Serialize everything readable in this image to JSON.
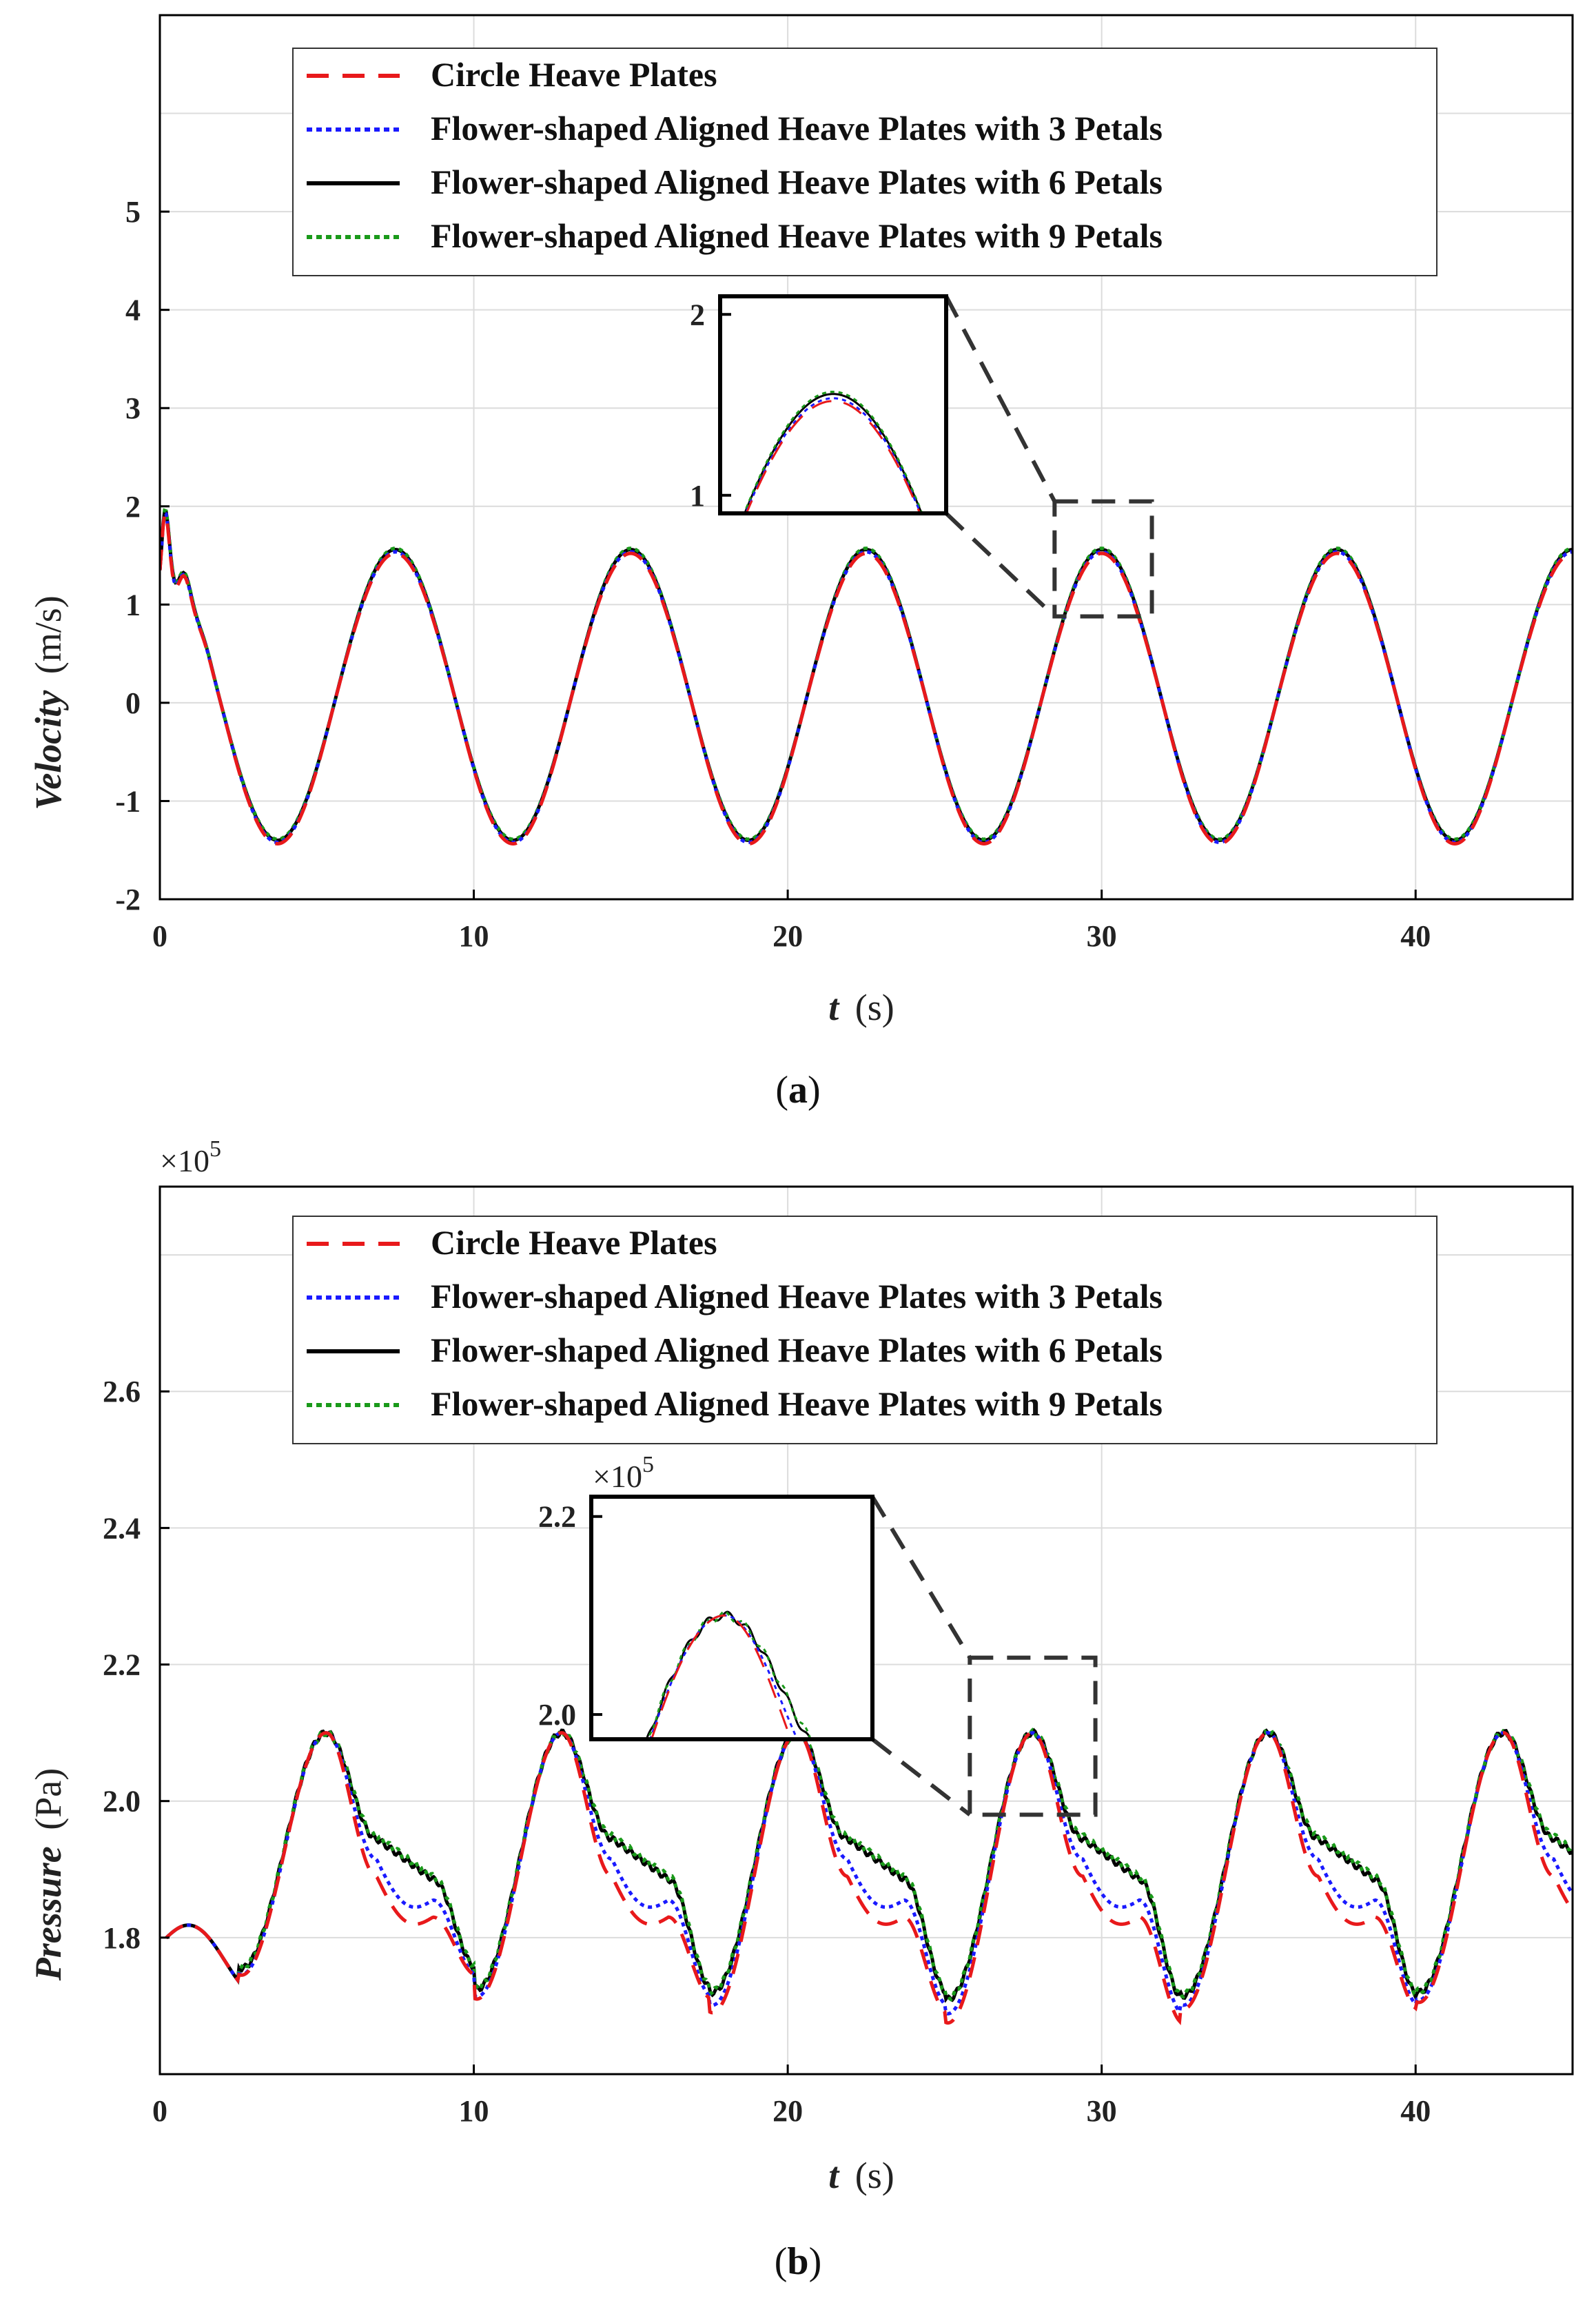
{
  "chart_data": [
    {
      "type": "line",
      "panel_label": "a",
      "ylabel_italic": "Velocity",
      "ylabel_unit": "(m/s)",
      "xlabel_italic": "t",
      "xlabel_unit": "(s)",
      "xlim": [
        0,
        45
      ],
      "ylim": [
        -2,
        7
      ],
      "xticks": [
        0,
        10,
        20,
        30,
        40
      ],
      "yticks": [
        -2,
        -1,
        0,
        1,
        2,
        3,
        4,
        5
      ],
      "grid": true,
      "legend_position": "top-center",
      "signal": {
        "period": 7.5,
        "mean": 0.08,
        "amplitude": 1.48,
        "peak_times": [
          7.5,
          15.0,
          22.5,
          30.0,
          37.5,
          45.0
        ],
        "trough_times": [
          3.75,
          11.25,
          18.75,
          26.25,
          33.75,
          41.25
        ],
        "peak_value": 1.56,
        "trough_value": -1.4,
        "start_value": 1.3
      },
      "series": [
        {
          "name": "Circle Heave Plates",
          "color": "#e8191b",
          "dash": "dashed",
          "peak_scale": 0.975
        },
        {
          "name": "Flower-shaped Aligned Heave Plates with 3 Petals",
          "color": "#1a1aff",
          "dash": "dotted",
          "peak_scale": 0.985
        },
        {
          "name": "Flower-shaped Aligned Heave Plates with 6 Petals",
          "color": "#000000",
          "dash": "solid",
          "peak_scale": 1.0
        },
        {
          "name": "Flower-shaped Aligned Heave Plates with 9 Petals",
          "color": "#1a9a1a",
          "dash": "dotted",
          "peak_scale": 1.008
        }
      ],
      "inset": {
        "x_range": [
          28.5,
          31.5
        ],
        "y_range": [
          0.9,
          2.1
        ],
        "yticks": [
          1,
          2
        ],
        "zoom_box_x": [
          28.5,
          31.6
        ],
        "zoom_box_y": [
          0.88,
          2.05
        ]
      }
    },
    {
      "type": "line",
      "panel_label": "b",
      "ylabel_italic": "Pressure",
      "ylabel_unit": "(Pa)",
      "xlabel_italic": "t",
      "xlabel_unit": "(s)",
      "exponent_label": "×10",
      "exponent_power": "5",
      "xlim": [
        0,
        45
      ],
      "ylim": [
        1.6,
        2.9
      ],
      "xticks": [
        0,
        10,
        20,
        30,
        40
      ],
      "yticks": [
        1.8,
        2.0,
        2.2,
        2.4,
        2.6
      ],
      "ytick_labels": [
        "1.8",
        "2.0",
        "2.2",
        "2.4",
        "2.6"
      ],
      "grid": true,
      "legend_position": "top-center",
      "signal": {
        "period": 7.5,
        "peak_times": [
          5.3,
          12.8,
          20.3,
          27.8,
          35.3,
          42.8
        ],
        "peak_value": 2.1,
        "trough_times": [
          2.5,
          10.1,
          17.6,
          25.1,
          32.6,
          40.2
        ],
        "trough_values_circle": [
          1.745,
          1.71,
          1.69,
          1.675,
          1.695,
          1.705
        ],
        "trough_values_6petal": [
          1.755,
          1.725,
          1.72,
          1.71,
          1.715,
          1.72
        ],
        "shoulder_circle": 1.83,
        "shoulder_3petal": 1.855,
        "shoulder_6petal": 1.885
      },
      "series": [
        {
          "name": "Circle Heave Plates",
          "color": "#e8191b",
          "dash": "dashed"
        },
        {
          "name": "Flower-shaped Aligned Heave Plates with 3 Petals",
          "color": "#1a1aff",
          "dash": "dotted"
        },
        {
          "name": "Flower-shaped Aligned Heave Plates with 6 Petals",
          "color": "#000000",
          "dash": "solid"
        },
        {
          "name": "Flower-shaped Aligned Heave Plates with 9 Petals",
          "color": "#1a9a1a",
          "dash": "dotted"
        }
      ],
      "inset": {
        "exponent_label": "×10",
        "exponent_power": "5",
        "x_range": [
          26.0,
          29.8
        ],
        "y_range": [
          1.975,
          2.22
        ],
        "yticks": [
          2.0,
          2.2
        ],
        "ytick_labels": [
          "2.0",
          "2.2"
        ],
        "zoom_box_x": [
          25.8,
          29.8
        ],
        "zoom_box_y": [
          1.98,
          2.21
        ]
      }
    }
  ]
}
